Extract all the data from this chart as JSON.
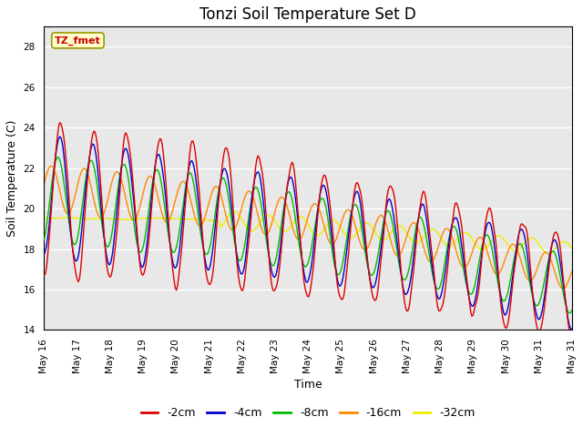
{
  "title": "Tonzi Soil Temperature Set D",
  "xlabel": "Time",
  "ylabel": "Soil Temperature (C)",
  "annotation": "TZ_fmet",
  "ylim": [
    14,
    29
  ],
  "yticks": [
    14,
    16,
    18,
    20,
    22,
    24,
    26,
    28
  ],
  "legend_labels": [
    "-2cm",
    "-4cm",
    "-8cm",
    "-16cm",
    "-32cm"
  ],
  "line_colors": [
    "#dd0000",
    "#0000cc",
    "#00bb00",
    "#ff8800",
    "#eeee00"
  ],
  "fig_bg_color": "#ffffff",
  "plot_bg_color": "#e8e8e8",
  "title_fontsize": 12,
  "axis_label_fontsize": 9,
  "tick_fontsize": 7.5,
  "n_points": 480
}
